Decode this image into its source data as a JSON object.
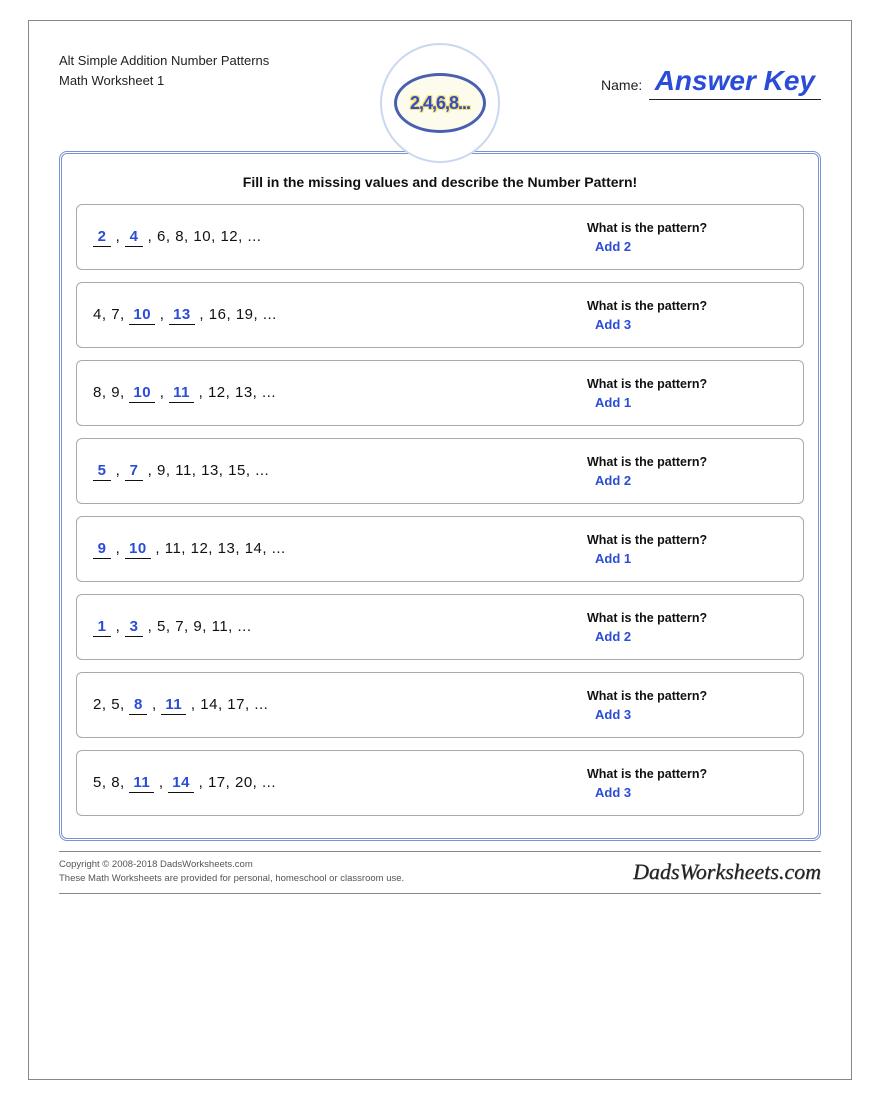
{
  "colors": {
    "accent_blue": "#2a4cd6",
    "badge_border": "#4a5fb0",
    "badge_outer_ring": "#c9d8ef",
    "panel_border": "#7a92d4",
    "text": "#111111",
    "muted": "#555555",
    "page_border": "#888888"
  },
  "header": {
    "title_line1": "Alt Simple Addition Number Patterns",
    "title_line2": "Math Worksheet 1",
    "badge_text": "2,4,6,8...",
    "name_label": "Name:",
    "answer_key": "Answer Key"
  },
  "instructions": "Fill in the missing values and describe the Number Pattern!",
  "pattern_question": "What is the pattern?",
  "problems": [
    {
      "items": [
        {
          "v": "2",
          "blank": true
        },
        {
          "v": "4",
          "blank": true
        },
        {
          "v": "6"
        },
        {
          "v": "8"
        },
        {
          "v": "10"
        },
        {
          "v": "12"
        }
      ],
      "answer": "Add 2"
    },
    {
      "items": [
        {
          "v": "4"
        },
        {
          "v": "7"
        },
        {
          "v": "10",
          "blank": true
        },
        {
          "v": "13",
          "blank": true
        },
        {
          "v": "16"
        },
        {
          "v": "19"
        }
      ],
      "answer": "Add 3"
    },
    {
      "items": [
        {
          "v": "8"
        },
        {
          "v": "9"
        },
        {
          "v": "10",
          "blank": true
        },
        {
          "v": "11",
          "blank": true
        },
        {
          "v": "12"
        },
        {
          "v": "13"
        }
      ],
      "answer": "Add 1"
    },
    {
      "items": [
        {
          "v": "5",
          "blank": true
        },
        {
          "v": "7",
          "blank": true
        },
        {
          "v": "9"
        },
        {
          "v": "11"
        },
        {
          "v": "13"
        },
        {
          "v": "15"
        }
      ],
      "answer": "Add 2"
    },
    {
      "items": [
        {
          "v": "9",
          "blank": true
        },
        {
          "v": "10",
          "blank": true
        },
        {
          "v": "11"
        },
        {
          "v": "12"
        },
        {
          "v": "13"
        },
        {
          "v": "14"
        }
      ],
      "answer": "Add 1"
    },
    {
      "items": [
        {
          "v": "1",
          "blank": true
        },
        {
          "v": "3",
          "blank": true
        },
        {
          "v": "5"
        },
        {
          "v": "7"
        },
        {
          "v": "9"
        },
        {
          "v": "11"
        }
      ],
      "answer": "Add 2"
    },
    {
      "items": [
        {
          "v": "2"
        },
        {
          "v": "5"
        },
        {
          "v": "8",
          "blank": true
        },
        {
          "v": "11",
          "blank": true
        },
        {
          "v": "14"
        },
        {
          "v": "17"
        }
      ],
      "answer": "Add 3"
    },
    {
      "items": [
        {
          "v": "5"
        },
        {
          "v": "8"
        },
        {
          "v": "11",
          "blank": true
        },
        {
          "v": "14",
          "blank": true
        },
        {
          "v": "17"
        },
        {
          "v": "20"
        }
      ],
      "answer": "Add 3"
    }
  ],
  "footer": {
    "copyright": "Copyright © 2008-2018 DadsWorksheets.com",
    "note": "These Math Worksheets are provided for personal, homeschool or classroom use.",
    "brand": "DadsWorksheets.com"
  }
}
